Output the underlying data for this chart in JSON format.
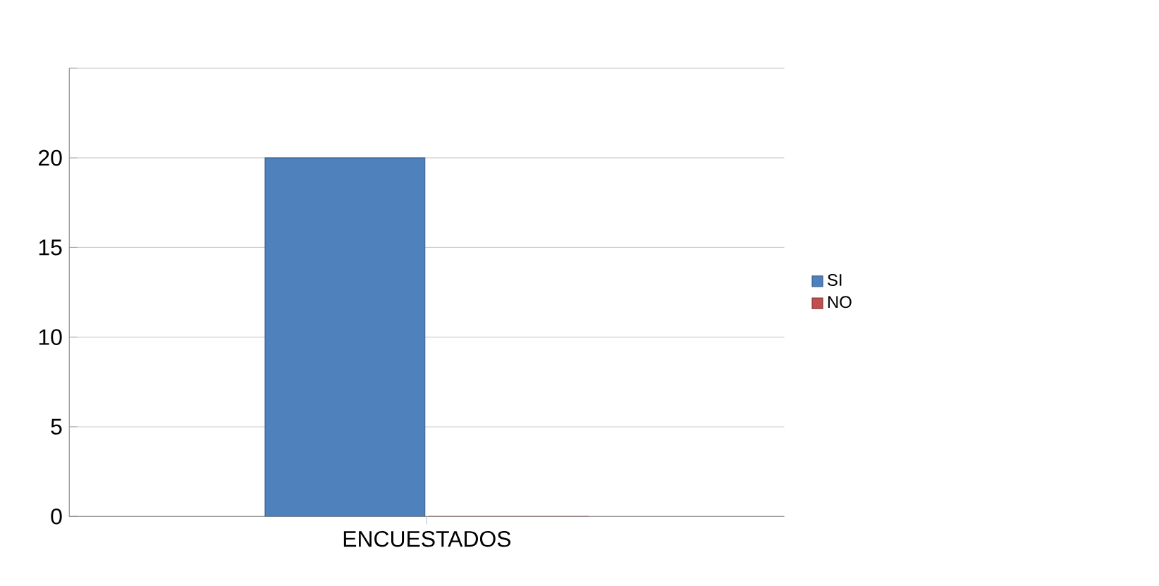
{
  "chart_data": {
    "type": "bar",
    "categories": [
      "ENCUESTADOS"
    ],
    "series": [
      {
        "name": "SI",
        "color": "#4f81bd",
        "values": [
          20
        ]
      },
      {
        "name": "NO",
        "color": "#c0504d",
        "values": [
          0
        ]
      }
    ],
    "ylim": [
      0,
      25
    ],
    "yticks": [
      0,
      5,
      10,
      15,
      20,
      {
        "value": 25,
        "label": null
      }
    ],
    "grid": "y",
    "legend": "right"
  }
}
